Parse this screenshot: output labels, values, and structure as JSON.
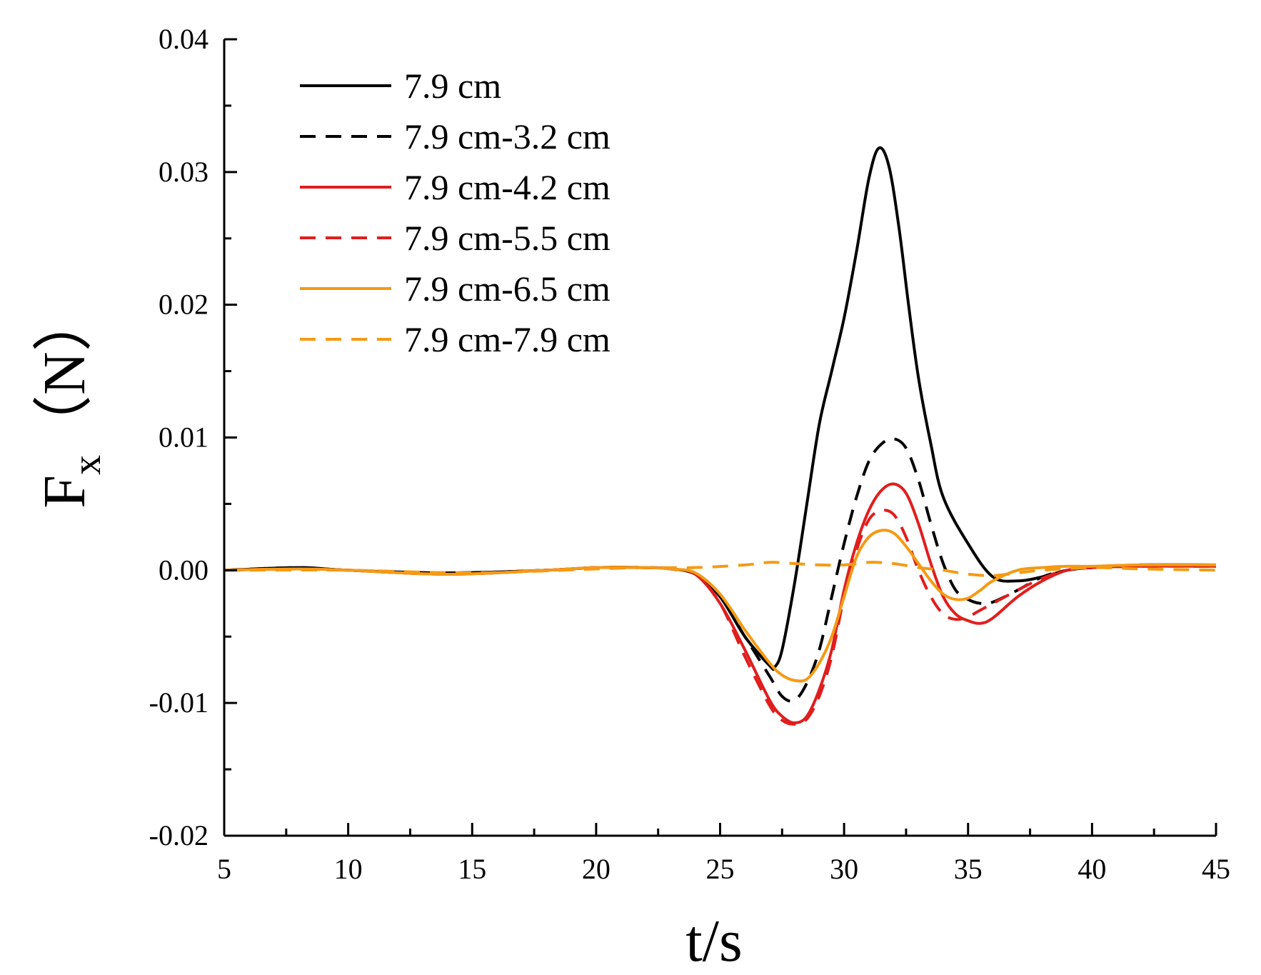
{
  "chart_data": {
    "type": "line",
    "xlabel": "t/s",
    "ylabel_main": "F",
    "ylabel_sub": "x",
    "ylabel_unit": "（N）",
    "xlim": [
      5,
      45
    ],
    "ylim": [
      -0.02,
      0.04
    ],
    "xticks": [
      5,
      10,
      15,
      20,
      25,
      30,
      35,
      40,
      45
    ],
    "xtick_labels": [
      "5",
      "10",
      "15",
      "20",
      "25",
      "30",
      "35",
      "40",
      "45"
    ],
    "yticks": [
      -0.02,
      -0.01,
      0.0,
      0.01,
      0.02,
      0.03,
      0.04
    ],
    "ytick_labels": [
      "-0.02",
      "-0.01",
      "0.00",
      "0.01",
      "0.02",
      "0.03",
      "0.04"
    ],
    "grid": false,
    "legend_position": "top-left",
    "series": [
      {
        "name": "7.9 cm",
        "color": "#000000",
        "dash": "solid",
        "x": [
          5,
          8,
          10,
          14,
          18,
          20,
          22,
          23,
          24,
          25,
          26,
          27,
          27.2,
          27.5,
          28,
          28.5,
          29,
          29.5,
          30,
          30.5,
          31,
          31.4,
          31.8,
          32.2,
          32.6,
          33,
          33.5,
          34,
          35,
          36,
          37,
          38,
          39,
          40,
          42,
          45
        ],
        "y": [
          0,
          0.0002,
          0,
          -0.0002,
          0,
          0.0002,
          0.0002,
          0.0001,
          -0.0003,
          -0.002,
          -0.005,
          -0.0072,
          -0.0073,
          -0.006,
          -0.001,
          0.005,
          0.011,
          0.015,
          0.019,
          0.024,
          0.0295,
          0.0318,
          0.0305,
          0.026,
          0.02,
          0.0145,
          0.0095,
          0.0055,
          0.002,
          -0.0005,
          -0.0008,
          -0.0005,
          0,
          0.0002,
          0.0004,
          0.0004
        ]
      },
      {
        "name": "7.9 cm-3.2 cm",
        "color": "#000000",
        "dash": "dashed",
        "x": [
          5,
          8,
          10,
          14,
          18,
          20,
          22,
          23,
          24,
          25,
          26,
          27,
          27.5,
          28,
          28.5,
          29,
          29.5,
          30,
          30.5,
          31,
          31.5,
          32,
          32.5,
          33,
          33.5,
          34,
          34.5,
          35,
          35.5,
          36,
          37,
          38,
          39,
          40,
          42,
          45
        ],
        "y": [
          0,
          0.0002,
          0,
          -0.0002,
          0,
          0.0002,
          0.0002,
          0.0001,
          -0.0003,
          -0.002,
          -0.005,
          -0.008,
          -0.0095,
          -0.0098,
          -0.0085,
          -0.006,
          -0.002,
          0.002,
          0.0055,
          0.0082,
          0.0095,
          0.0099,
          0.0092,
          0.0068,
          0.0035,
          0.0005,
          -0.0015,
          -0.0022,
          -0.0025,
          -0.0024,
          -0.0015,
          -0.0005,
          0,
          0.0002,
          0.0004,
          0.0003
        ]
      },
      {
        "name": "7.9 cm-4.2 cm",
        "color": "#e01e1e",
        "dash": "solid",
        "x": [
          5,
          8,
          10,
          14,
          18,
          20,
          22,
          23,
          24,
          25,
          26,
          27,
          27.5,
          28,
          28.5,
          29,
          29.5,
          30,
          30.5,
          31,
          31.5,
          32,
          32.5,
          33,
          33.5,
          34,
          34.5,
          35,
          35.5,
          36,
          37,
          38,
          39,
          40,
          42,
          45
        ],
        "y": [
          0,
          0.0001,
          0,
          -0.0003,
          0,
          0.0002,
          0.0002,
          0.0001,
          -0.0003,
          -0.0025,
          -0.006,
          -0.0098,
          -0.011,
          -0.0115,
          -0.011,
          -0.009,
          -0.006,
          -0.0015,
          0.002,
          0.0045,
          0.006,
          0.0065,
          0.0058,
          0.0035,
          0.0005,
          -0.002,
          -0.0033,
          -0.0038,
          -0.004,
          -0.0036,
          -0.002,
          -0.0008,
          0,
          0.0002,
          0.0003,
          0.0003
        ]
      },
      {
        "name": "7.9 cm-5.5 cm",
        "color": "#e01e1e",
        "dash": "dashed",
        "x": [
          5,
          8,
          10,
          14,
          18,
          20,
          22,
          23,
          24,
          25,
          26,
          27,
          27.5,
          28,
          28.5,
          29,
          29.5,
          30,
          30.5,
          31,
          31.5,
          32,
          32.5,
          33,
          33.5,
          34,
          34.5,
          35,
          35.5,
          36,
          37,
          38,
          39,
          40,
          42,
          45
        ],
        "y": [
          0,
          0.0001,
          0,
          -0.0003,
          0,
          0.0002,
          0.0002,
          0.0001,
          -0.0003,
          -0.0025,
          -0.0065,
          -0.0102,
          -0.0113,
          -0.0116,
          -0.0112,
          -0.0095,
          -0.0065,
          -0.002,
          0.0015,
          0.0038,
          0.0045,
          0.0042,
          0.0025,
          0.0,
          -0.002,
          -0.0033,
          -0.0037,
          -0.0035,
          -0.003,
          -0.0025,
          -0.0015,
          -0.0006,
          0,
          0.0002,
          0.0003,
          0.0003
        ]
      },
      {
        "name": "7.9 cm-6.5 cm",
        "color": "#f59a14",
        "dash": "solid",
        "x": [
          5,
          8,
          10,
          14,
          18,
          20,
          22,
          23,
          24,
          25,
          26,
          27,
          27.5,
          28,
          28.5,
          29,
          29.5,
          30,
          30.5,
          31,
          31.5,
          32,
          32.5,
          33,
          33.5,
          34,
          34.5,
          35,
          35.5,
          36,
          37,
          38,
          39,
          40,
          42,
          45
        ],
        "y": [
          0,
          0.0001,
          0,
          -0.0003,
          0,
          0.0002,
          0.0002,
          0.0001,
          -0.0002,
          -0.0018,
          -0.0045,
          -0.007,
          -0.0079,
          -0.0083,
          -0.0082,
          -0.007,
          -0.005,
          -0.002,
          0.001,
          0.0025,
          0.003,
          0.0028,
          0.0018,
          0.0005,
          -0.0008,
          -0.0018,
          -0.0022,
          -0.0021,
          -0.0015,
          -0.0008,
          0.0,
          0.0002,
          0.0003,
          0.0003,
          0.0004,
          0.0004
        ]
      },
      {
        "name": "7.9 cm-7.9 cm",
        "color": "#f59a14",
        "dash": "dashed",
        "x": [
          5,
          10,
          15,
          20,
          22,
          24,
          26,
          27,
          28,
          29,
          30,
          31,
          32,
          33,
          34,
          35,
          36,
          37,
          38,
          40,
          42,
          45
        ],
        "y": [
          0,
          0,
          -0.0002,
          0.0001,
          0.0002,
          0.0002,
          0.0004,
          0.0006,
          0.0005,
          0.0004,
          0.0004,
          0.0006,
          0.0005,
          0.0002,
          0.0,
          -0.0003,
          -0.0004,
          -0.0002,
          0.0,
          0.0002,
          0.0001,
          0.0
        ]
      }
    ]
  }
}
